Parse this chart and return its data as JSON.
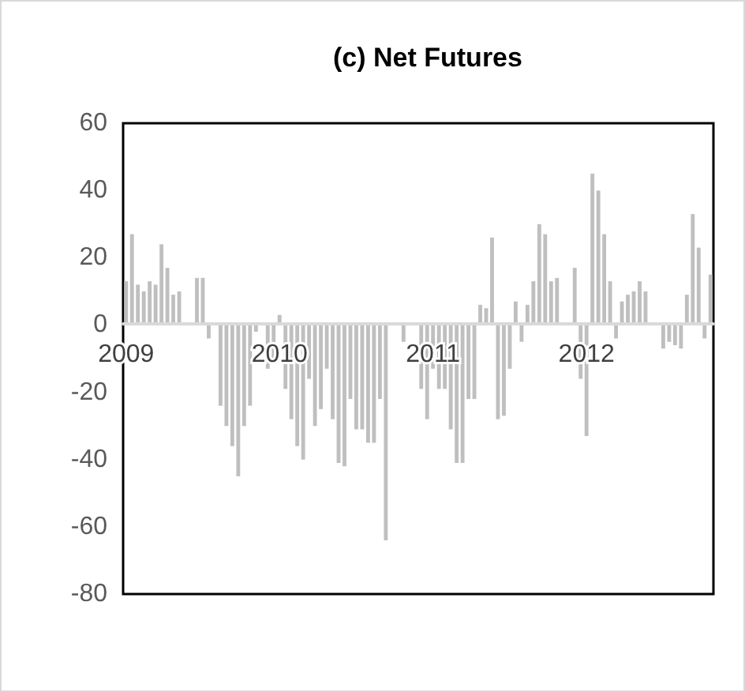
{
  "chart_data": {
    "type": "bar",
    "title": "(c) Net Futures",
    "categories": [
      "2009",
      null,
      null,
      null,
      null,
      null,
      null,
      null,
      null,
      null,
      null,
      null,
      null,
      null,
      null,
      null,
      null,
      null,
      null,
      null,
      null,
      null,
      null,
      null,
      null,
      null,
      "2010",
      null,
      null,
      null,
      null,
      null,
      null,
      null,
      null,
      null,
      null,
      null,
      null,
      null,
      null,
      null,
      null,
      null,
      null,
      null,
      null,
      null,
      null,
      null,
      null,
      null,
      "2011",
      null,
      null,
      null,
      null,
      null,
      null,
      null,
      null,
      null,
      null,
      null,
      null,
      null,
      null,
      null,
      null,
      null,
      null,
      null,
      null,
      null,
      null,
      null,
      null,
      null,
      "2012",
      null,
      null,
      null,
      null,
      null,
      null,
      null,
      null,
      null,
      null,
      null,
      null,
      null,
      null,
      null,
      null,
      null,
      null,
      null,
      null,
      null
    ],
    "values": [
      13,
      27,
      12,
      10,
      13,
      12,
      24,
      17,
      9,
      10,
      0,
      0,
      14,
      14,
      -4,
      0,
      -24,
      -30,
      -36,
      -45,
      -30,
      -24,
      -2,
      0,
      -13,
      -10,
      3,
      -19,
      -28,
      -36,
      -40,
      -16,
      -30,
      -25,
      -13,
      -28,
      -41,
      -42,
      -22,
      -31,
      -31,
      -35,
      -35,
      -22,
      -64,
      0,
      0,
      -5,
      0,
      0,
      -19,
      -28,
      -13,
      -19,
      -19,
      -31,
      -41,
      -41,
      -22,
      -22,
      6,
      5,
      26,
      -28,
      -27,
      -13,
      7,
      -5,
      6,
      13,
      30,
      27,
      13,
      14,
      0,
      0,
      17,
      -16,
      -33,
      45,
      40,
      27,
      13,
      -4,
      7,
      9,
      10,
      13,
      10,
      0,
      0,
      -7,
      -5,
      -6,
      -7,
      9,
      33,
      23,
      -4,
      15
    ],
    "color": "#bfbfbf",
    "ylim": [
      -80,
      60
    ],
    "yticks": [
      -80,
      -60,
      -40,
      -20,
      0,
      20,
      40,
      60
    ],
    "grid": false
  }
}
